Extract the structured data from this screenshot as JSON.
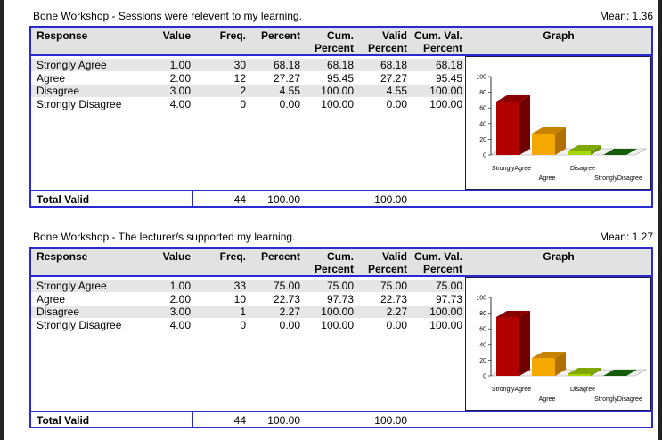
{
  "sections": [
    {
      "title": "Bone Workshop - Sessions were relevent to my learning.",
      "mean": "Mean: 1.36",
      "columns": [
        [
          "Response"
        ],
        [
          "Value"
        ],
        [
          "Freq."
        ],
        [
          "Percent"
        ],
        [
          "Cum.",
          "Percent"
        ],
        [
          "Valid",
          "Percent"
        ],
        [
          "Cum. Val.",
          "Percent"
        ],
        [
          "Graph"
        ]
      ],
      "rows": [
        [
          "Strongly Agree",
          "1.00",
          "30",
          "68.18",
          "68.18",
          "68.18",
          "68.18"
        ],
        [
          "Agree",
          "2.00",
          "12",
          "27.27",
          "95.45",
          "27.27",
          "95.45"
        ],
        [
          "Disagree",
          "3.00",
          "2",
          "4.55",
          "100.00",
          "4.55",
          "100.00"
        ],
        [
          "Strongly Disagree",
          "4.00",
          "0",
          "0.00",
          "100.00",
          "0.00",
          "100.00"
        ]
      ],
      "total": [
        "Total Valid",
        "44",
        "100.00",
        "100.00"
      ],
      "graph": {
        "yticks": [
          0,
          20,
          40,
          60,
          80,
          100
        ],
        "categories": [
          "StronglyAgree",
          "Agree",
          "Disagree",
          "StronglyDisagree"
        ]
      }
    },
    {
      "title": "Bone Workshop - The lecturer/s supported my learning.",
      "mean": "Mean: 1.27",
      "columns": [
        [
          "Response"
        ],
        [
          "Value"
        ],
        [
          "Freq."
        ],
        [
          "Percent"
        ],
        [
          "Cum.",
          "Percent"
        ],
        [
          "Valid",
          "Percent"
        ],
        [
          "Cum. Val.",
          "Percent"
        ],
        [
          "Graph"
        ]
      ],
      "rows": [
        [
          "Strongly Agree",
          "1.00",
          "33",
          "75.00",
          "75.00",
          "75.00",
          "75.00"
        ],
        [
          "Agree",
          "2.00",
          "10",
          "22.73",
          "97.73",
          "22.73",
          "97.73"
        ],
        [
          "Disagree",
          "3.00",
          "1",
          "2.27",
          "100.00",
          "2.27",
          "100.00"
        ],
        [
          "Strongly Disagree",
          "4.00",
          "0",
          "0.00",
          "100.00",
          "0.00",
          "100.00"
        ]
      ],
      "total": [
        "Total Valid",
        "44",
        "100.00",
        "100.00"
      ],
      "graph": {
        "yticks": [
          0,
          20,
          40,
          60,
          80,
          100
        ],
        "categories": [
          "StronglyAgree",
          "Agree",
          "Disagree",
          "StronglyDisagree"
        ]
      }
    }
  ]
}
